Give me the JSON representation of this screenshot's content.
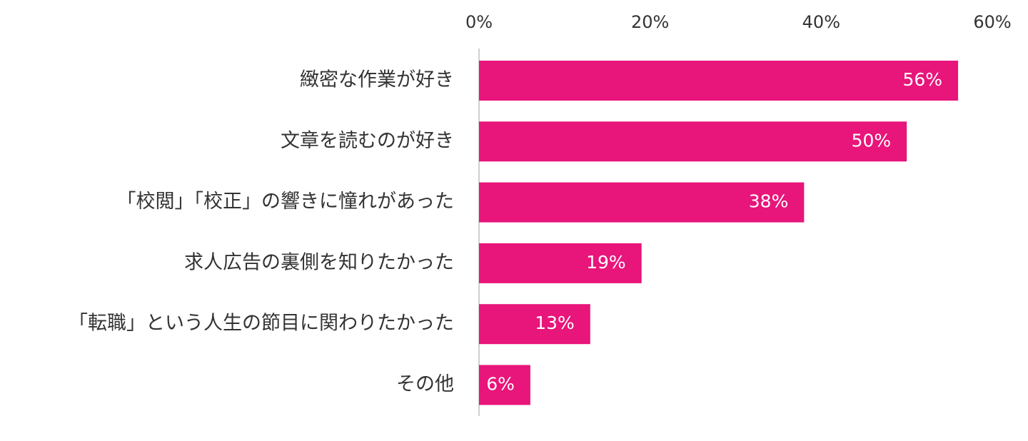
{
  "chart_data": {
    "type": "bar",
    "orientation": "horizontal",
    "categories": [
      "緻密な作業が好き",
      "文章を読むのが好き",
      "「校閲」「校正」の響きに憧れがあった",
      "求人広告の裏側を知りたかった",
      "「転職」という人生の節目に関わりたかった",
      "その他"
    ],
    "values": [
      56,
      50,
      38,
      19,
      13,
      6
    ],
    "value_labels": [
      "56%",
      "50%",
      "38%",
      "19%",
      "13%",
      "6%"
    ],
    "xlim": [
      0,
      60
    ],
    "ticks": [
      0,
      20,
      40,
      60
    ],
    "tick_labels": [
      "0%",
      "20%",
      "40%",
      "60%"
    ],
    "axis_position": "top",
    "grid": false,
    "legend": false,
    "colors": {
      "bar": "#e8157a",
      "axis": "#d0d0d0",
      "text": "#333333",
      "value_text": "#ffffff"
    }
  }
}
